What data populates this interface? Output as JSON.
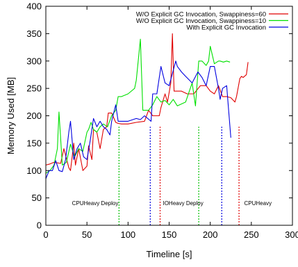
{
  "chart_data": {
    "type": "line",
    "xlabel": "Timeline [s]",
    "ylabel": "Memory Used [MB]",
    "xlim": [
      0,
      300
    ],
    "ylim": [
      0,
      400
    ],
    "xticks": [
      0,
      50,
      100,
      150,
      200,
      250,
      300
    ],
    "yticks": [
      0,
      50,
      100,
      150,
      200,
      250,
      300,
      350,
      400
    ],
    "xtick_labels": [
      "0",
      "50",
      "100",
      "150",
      "200",
      "250",
      "300"
    ],
    "ytick_labels": [
      "0",
      "50",
      "100",
      "150",
      "200",
      "250",
      "300",
      "350",
      "400"
    ],
    "grid": false,
    "legend_position": "top-right",
    "series": [
      {
        "name": "W/O Explicit GC Invocation, Swappiness=60",
        "color": "#e00000",
        "x": [
          0,
          5,
          10,
          18,
          22,
          28,
          30,
          34,
          36,
          40,
          45,
          50,
          52,
          56,
          58,
          62,
          66,
          70,
          74,
          76,
          80,
          85,
          88,
          92,
          100,
          110,
          120,
          125,
          130,
          138,
          140,
          145,
          148,
          152,
          154,
          156,
          160,
          165,
          172,
          180,
          188,
          195,
          200,
          205,
          210,
          215,
          220,
          225,
          230,
          232,
          236,
          238,
          240,
          244,
          246
        ],
        "y": [
          110,
          112,
          115,
          113,
          140,
          105,
          100,
          150,
          110,
          140,
          100,
          108,
          145,
          120,
          175,
          170,
          140,
          175,
          180,
          205,
          205,
          188,
          186,
          185,
          185,
          188,
          190,
          210,
          200,
          200,
          215,
          240,
          225,
          260,
          350,
          245,
          245,
          245,
          240,
          240,
          255,
          255,
          245,
          240,
          255,
          235,
          235,
          233,
          225,
          235,
          268,
          272,
          270,
          275,
          298
        ]
      },
      {
        "name": "W/O Explicit GC Invocation, Swappiness=10",
        "color": "#00e000",
        "x": [
          0,
          5,
          10,
          14,
          16,
          20,
          25,
          30,
          35,
          40,
          45,
          50,
          52,
          55,
          58,
          62,
          66,
          70,
          75,
          80,
          85,
          88,
          92,
          100,
          108,
          110,
          115,
          118,
          125,
          130,
          135,
          140,
          145,
          150,
          155,
          160,
          170,
          178,
          182,
          186,
          190,
          195,
          198,
          200,
          205,
          210,
          212,
          216,
          220,
          224
        ],
        "y": [
          95,
          100,
          110,
          140,
          207,
          110,
          115,
          148,
          125,
          140,
          135,
          170,
          175,
          188,
          175,
          170,
          180,
          185,
          180,
          200,
          210,
          235,
          235,
          240,
          250,
          265,
          340,
          210,
          210,
          220,
          235,
          225,
          228,
          220,
          230,
          218,
          225,
          260,
          218,
          300,
          300,
          292,
          300,
          327,
          295,
          300,
          300,
          298,
          300,
          298
        ]
      },
      {
        "name": "With Explicit GC Invocation",
        "color": "#0000e0",
        "x": [
          0,
          4,
          8,
          12,
          16,
          20,
          24,
          28,
          30,
          34,
          38,
          42,
          46,
          50,
          54,
          58,
          62,
          66,
          70,
          74,
          78,
          80,
          85,
          88,
          92,
          100,
          110,
          115,
          120,
          128,
          130,
          135,
          140,
          145,
          150,
          158,
          160,
          165,
          170,
          178,
          185,
          190,
          195,
          200,
          205,
          210,
          212,
          215,
          220,
          225
        ],
        "y": [
          85,
          100,
          100,
          118,
          100,
          98,
          120,
          170,
          190,
          120,
          140,
          150,
          125,
          120,
          155,
          195,
          180,
          190,
          180,
          175,
          165,
          190,
          220,
          190,
          190,
          190,
          195,
          193,
          200,
          190,
          240,
          240,
          290,
          260,
          255,
          300,
          290,
          280,
          272,
          260,
          280,
          270,
          255,
          290,
          290,
          250,
          230,
          250,
          255,
          160
        ]
      }
    ],
    "vlines": [
      {
        "x": 89,
        "color": "#00c000"
      },
      {
        "x": 127,
        "color": "#0000e0"
      },
      {
        "x": 139,
        "color": "#e00000"
      },
      {
        "x": 186,
        "color": "#00c000"
      },
      {
        "x": 214,
        "color": "#0000e0"
      },
      {
        "x": 235,
        "color": "#e00000"
      }
    ],
    "annotations": [
      {
        "text": "CPUHeavy Deploy",
        "x": 60,
        "y": 37
      },
      {
        "text": "IOHeavy Deploy",
        "x": 167,
        "y": 37
      },
      {
        "text": "CPUHeavy",
        "x": 258,
        "y": 37
      }
    ]
  }
}
